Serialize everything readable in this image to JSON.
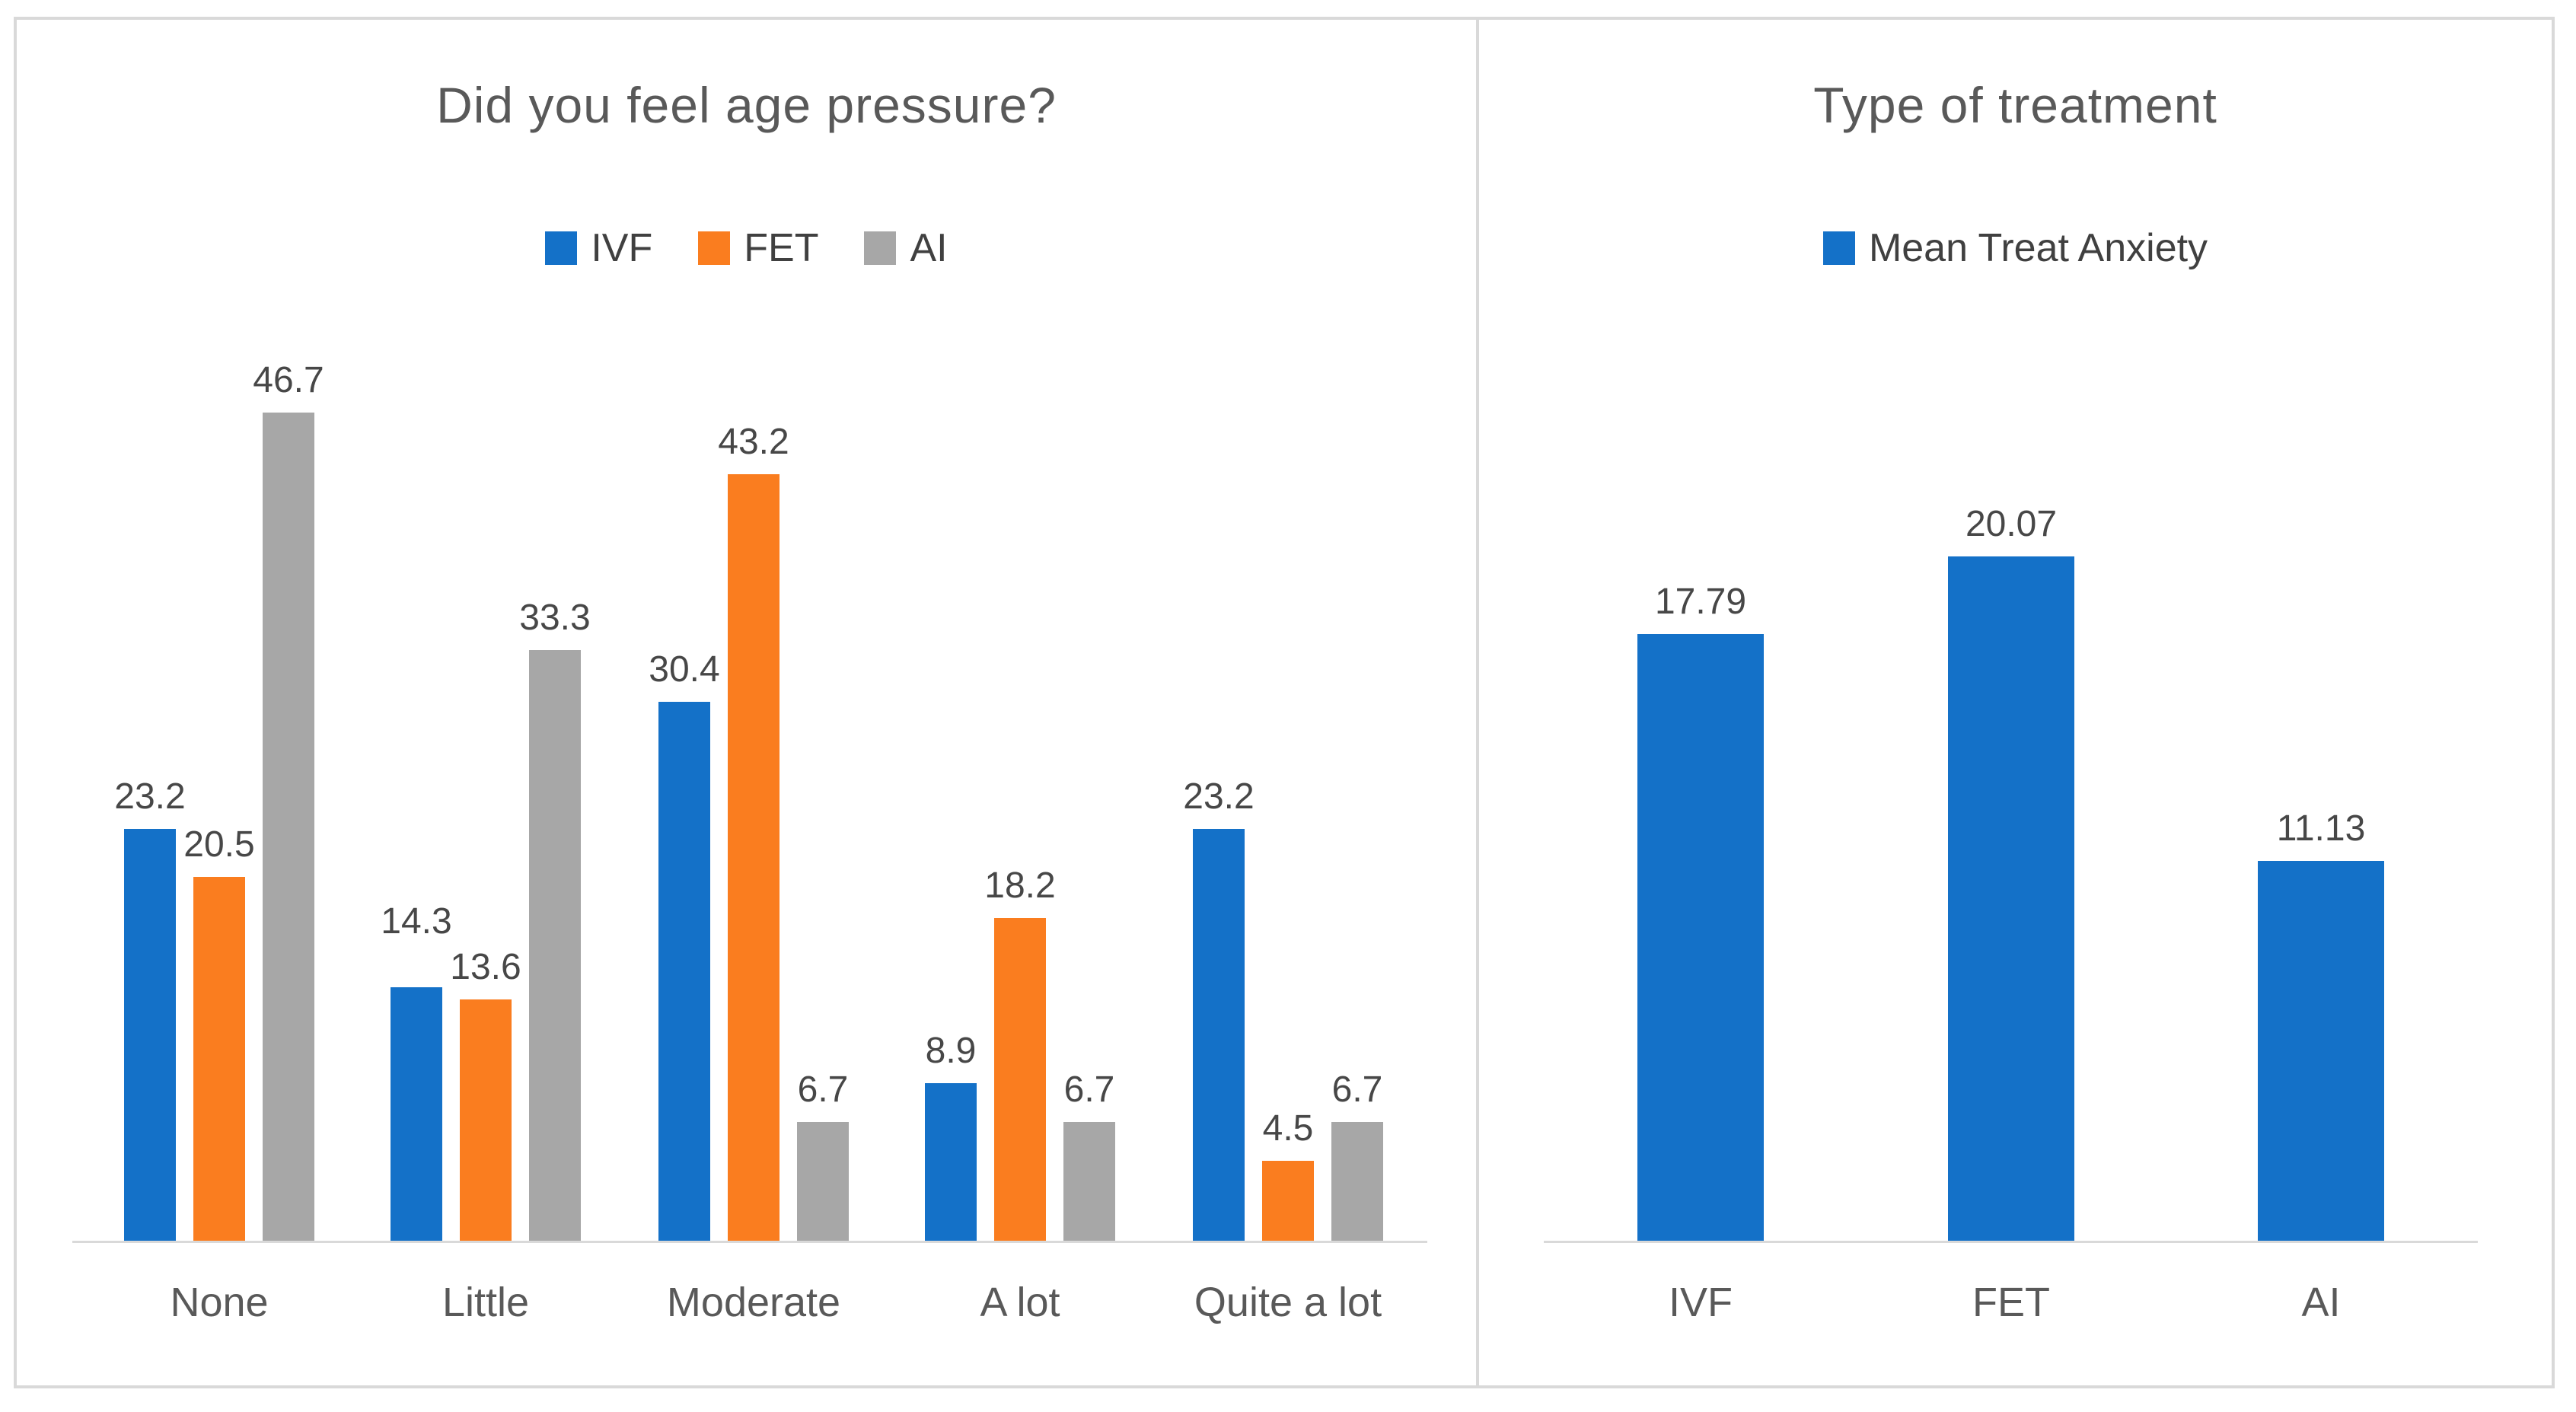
{
  "figure": {
    "border_color": "#D9D9D9",
    "axis_color": "#D9D9D9",
    "background": "#FFFFFF"
  },
  "chart_data": [
    {
      "type": "bar",
      "title": "Did you feel age pressure?",
      "categories": [
        "None",
        "Little",
        "Moderate",
        "A lot",
        "Quite a lot"
      ],
      "series": [
        {
          "name": "IVF",
          "color": "#1471C8",
          "values": [
            23.2,
            14.3,
            30.4,
            8.9,
            23.2
          ]
        },
        {
          "name": "FET",
          "color": "#FA7D1F",
          "values": [
            20.5,
            13.6,
            43.2,
            18.2,
            4.5
          ]
        },
        {
          "name": "AI",
          "color": "#A7A7A7",
          "values": [
            46.7,
            33.3,
            6.7,
            6.7,
            6.7
          ]
        }
      ],
      "xlabel": "",
      "ylabel": "",
      "ylim": [
        0,
        50
      ],
      "grid": false,
      "data_labels": true,
      "legend_position": "top"
    },
    {
      "type": "bar",
      "title": "Type of treatment",
      "categories": [
        "IVF",
        "FET",
        "AI"
      ],
      "series": [
        {
          "name": "Mean Treat Anxiety",
          "color": "#1471C8",
          "values": [
            17.79,
            20.07,
            11.13
          ]
        }
      ],
      "xlabel": "",
      "ylabel": "",
      "ylim": [
        0,
        22
      ],
      "grid": false,
      "data_labels": true,
      "legend_position": "top"
    }
  ]
}
